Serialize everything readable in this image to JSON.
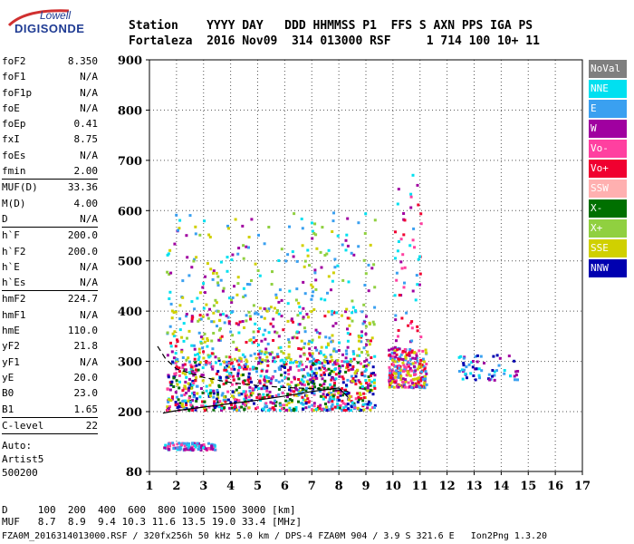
{
  "logo": {
    "line1": "Lowell",
    "line2": "DIGISONDE"
  },
  "header": {
    "row1": "Station    YYYY DAY   DDD HHMMSS P1  FFS S AXN PPS IGA PS",
    "row2": "Fortaleza  2016 Nov09  314 013000 RSF     1 714 100 10+ 11"
  },
  "params": [
    {
      "label": "foF2",
      "value": "8.350"
    },
    {
      "label": "foF1",
      "value": "N/A"
    },
    {
      "label": "foF1p",
      "value": "N/A"
    },
    {
      "label": "foE",
      "value": "N/A"
    },
    {
      "label": "foEp",
      "value": "0.41"
    },
    {
      "label": "fxI",
      "value": "8.75"
    },
    {
      "label": "foEs",
      "value": "N/A"
    },
    {
      "label": "fmin",
      "value": "2.00",
      "sep": true
    },
    {
      "label": "MUF(D)",
      "value": "33.36"
    },
    {
      "label": "M(D)",
      "value": "4.00"
    },
    {
      "label": "D",
      "value": "N/A",
      "sep": true
    },
    {
      "label": "h`F",
      "value": "200.0"
    },
    {
      "label": "h`F2",
      "value": "200.0"
    },
    {
      "label": "h`E",
      "value": "N/A"
    },
    {
      "label": "h`Es",
      "value": "N/A",
      "sep": true
    },
    {
      "label": "hmF2",
      "value": "224.7"
    },
    {
      "label": "hmF1",
      "value": "N/A"
    },
    {
      "label": "hmE",
      "value": "110.0"
    },
    {
      "label": "yF2",
      "value": "21.8"
    },
    {
      "label": "yF1",
      "value": "N/A"
    },
    {
      "label": "yE",
      "value": "20.0"
    },
    {
      "label": "B0",
      "value": "23.0"
    },
    {
      "label": "B1",
      "value": "1.65",
      "sep": true
    },
    {
      "label": "C-level",
      "value": "22",
      "sep": true
    }
  ],
  "auto": {
    "line1": "Auto:",
    "line2": "Artist5",
    "line3": "500200"
  },
  "legend": [
    {
      "label": "NoVal",
      "color": "#7f7f7f"
    },
    {
      "label": "NNE",
      "color": "#00e0f0"
    },
    {
      "label": "E",
      "color": "#3aa0f0"
    },
    {
      "label": "W",
      "color": "#a000a0"
    },
    {
      "label": "Vo-",
      "color": "#ff40a0"
    },
    {
      "label": "Vo+",
      "color": "#f00030"
    },
    {
      "label": "SSW",
      "color": "#ffb0b0"
    },
    {
      "label": "X-",
      "color": "#007000"
    },
    {
      "label": "X+",
      "color": "#90d040"
    },
    {
      "label": "SSE",
      "color": "#d0d000"
    },
    {
      "label": "NNW",
      "color": "#0000b0"
    }
  ],
  "footer": {
    "d_row": "D     100  200  400  600  800 1000 1500 3000 [km]",
    "muf_row": "MUF   8.7  8.9  9.4 10.3 11.6 13.5 19.0 33.4 [MHz]",
    "file_row": "FZA0M_2016314013000.RSF / 320fx256h 50 kHz 5.0 km / DPS-4 FZA0M 904 / 3.9 S 321.6 E   Ion2Png 1.3.20"
  },
  "chart_data": {
    "type": "scatter",
    "xlim": [
      1,
      17
    ],
    "ylim": [
      80,
      900
    ],
    "x_ticks": [
      "1",
      "2",
      "3",
      "4",
      "5",
      "6",
      "7",
      "8",
      "9",
      "10",
      "11",
      "12",
      "13",
      "14",
      "15",
      "16",
      "17"
    ],
    "y_ticks": [
      "80",
      "200",
      "300",
      "400",
      "500",
      "600",
      "700",
      "800",
      "900"
    ],
    "grid": true,
    "legend_position": "right",
    "trace_curve": {
      "x": [
        1.5,
        2.0,
        3.0,
        4.0,
        5.0,
        6.0,
        7.0,
        8.0,
        8.35
      ],
      "y": [
        197,
        202,
        209,
        216,
        223,
        231,
        240,
        247,
        228
      ]
    },
    "dashed_curve": {
      "x": [
        1.3,
        1.6,
        2.0,
        3.0,
        4.0,
        5.0,
        6.0,
        7.0,
        8.0,
        8.35
      ],
      "y": [
        330,
        305,
        285,
        268,
        258,
        252,
        248,
        246,
        243,
        240
      ]
    },
    "echo_regions": [
      {
        "x": [
          1.6,
          9.3
        ],
        "y": [
          205,
          305
        ],
        "colors": [
          "Vo+",
          "Vo-",
          "W",
          "SSE",
          "E",
          "NNE",
          "NNW",
          "X-"
        ],
        "density": 900
      },
      {
        "x": [
          1.6,
          9.3
        ],
        "y": [
          300,
          400
        ],
        "colors": [
          "E",
          "NNE",
          "Vo+",
          "W",
          "X+",
          "SSE"
        ],
        "density": 350
      },
      {
        "x": [
          1.6,
          9.3
        ],
        "y": [
          400,
          600
        ],
        "colors": [
          "E",
          "NNE",
          "SSE",
          "W",
          "X+"
        ],
        "density": 220
      },
      {
        "x": [
          9.8,
          11.2
        ],
        "y": [
          250,
          330
        ],
        "colors": [
          "Vo+",
          "Vo-",
          "W",
          "SSE",
          "E"
        ],
        "density": 260
      },
      {
        "x": [
          10.0,
          11.0
        ],
        "y": [
          330,
          680
        ],
        "colors": [
          "Vo+",
          "NNE",
          "E",
          "W",
          "Vo-"
        ],
        "density": 60
      },
      {
        "x": [
          12.4,
          14.6
        ],
        "y": [
          265,
          315
        ],
        "colors": [
          "NNW",
          "E",
          "NNE",
          "W"
        ],
        "density": 60
      },
      {
        "x": [
          1.5,
          3.4
        ],
        "y": [
          125,
          140
        ],
        "colors": [
          "Vo-",
          "W",
          "NNE",
          "E"
        ],
        "density": 110
      }
    ]
  }
}
